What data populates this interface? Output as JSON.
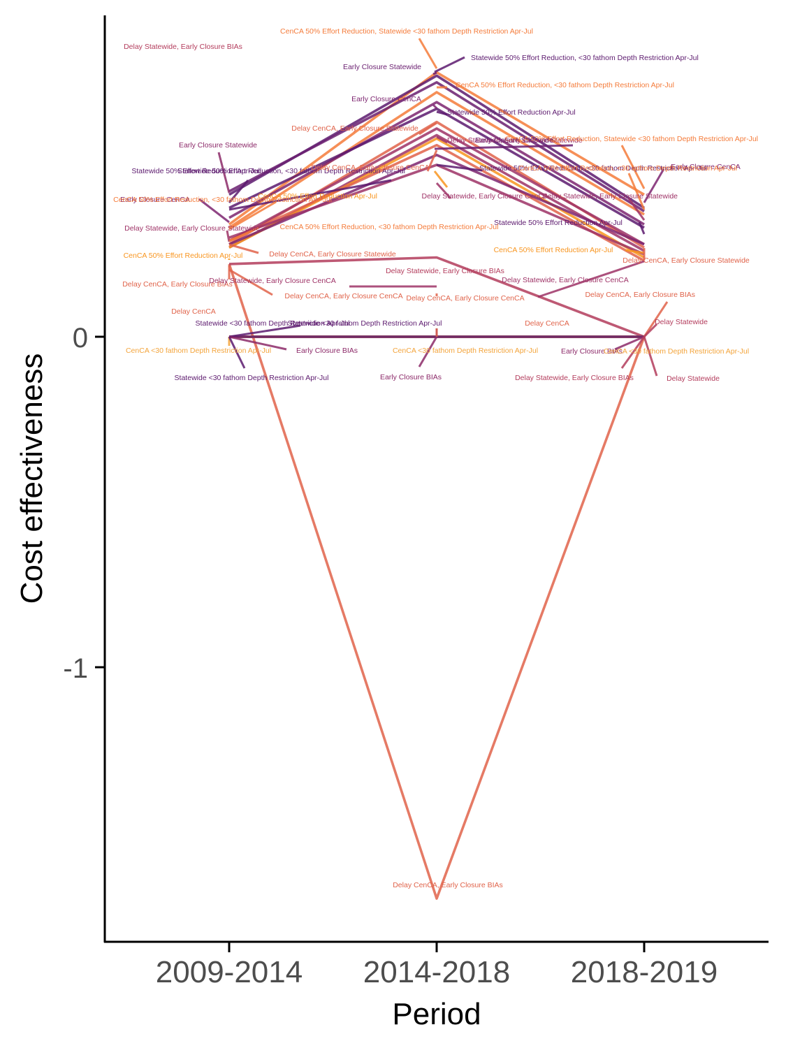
{
  "chart_data": {
    "type": "line",
    "xlabel": "Period",
    "ylabel": "Cost effectiveness",
    "categories": [
      "2009-2014",
      "2014-2018",
      "2018-2019"
    ],
    "yticks": [
      0,
      -1
    ],
    "ylim": [
      -1.83,
      0.97
    ],
    "grid": false,
    "legend": "none (direct labels)",
    "series": [
      {
        "name": "Delay CenCA, Early Closure BIAs",
        "color": "#e0634a",
        "values": [
          0.22,
          -1.7,
          0.0
        ]
      },
      {
        "name": "Delay Statewide, Early Closure BIAs",
        "color": "#b33c5c",
        "values": [
          0.22,
          0.24,
          0.0
        ]
      },
      {
        "name": "Delay Statewide",
        "color": "#b33c5c",
        "values": [
          0.0,
          0.0,
          0.0
        ]
      },
      {
        "name": "Delay CenCA",
        "color": "#e0634a",
        "values": [
          0.0,
          0.0,
          0.0
        ]
      },
      {
        "name": "Early Closure BIAs",
        "color": "#8c2a69",
        "values": [
          0.0,
          0.0,
          0.0
        ]
      },
      {
        "name": "CenCA <30 fathom Depth Restriction Apr-Jul",
        "color": "#f3a43b",
        "values": [
          0.0,
          0.0,
          0.0
        ]
      },
      {
        "name": "Statewide <30 fathom Depth Restriction Apr-Jul",
        "color": "#5c1a6e",
        "values": [
          0.0,
          0.0,
          0.0
        ]
      },
      {
        "name": "CenCA 50% Effort Reduction, Statewide <30 fathom Depth Restriction Apr-Jul",
        "color": "#f47b3a",
        "values": [
          0.34,
          0.8,
          0.43
        ]
      },
      {
        "name": "Statewide 50% Effort Reduction, <30 fathom Depth Restriction Apr-Jul",
        "color": "#5c1a6e",
        "values": [
          0.43,
          0.79,
          0.39
        ]
      },
      {
        "name": "Early Closure Statewide",
        "color": "#6a1f70",
        "values": [
          0.44,
          0.77,
          0.38
        ]
      },
      {
        "name": "CenCA 50% Effort Reduction, <30 fathom Depth Restriction Apr-Jul",
        "color": "#f47b3a",
        "values": [
          0.33,
          0.74,
          0.37
        ]
      },
      {
        "name": "Early Closure CenCA",
        "color": "#7d2570",
        "values": [
          0.36,
          0.71,
          0.34
        ]
      },
      {
        "name": "Statewide 50% Effort Reduction Apr-Jul",
        "color": "#5c1a6e",
        "values": [
          0.39,
          0.69,
          0.33
        ]
      },
      {
        "name": "Delay CenCA, Early Closure Statewide",
        "color": "#e0634a",
        "values": [
          0.28,
          0.65,
          0.27
        ]
      },
      {
        "name": "Delay Statewide, Early Closure Statewide",
        "color": "#9e3266",
        "values": [
          0.29,
          0.63,
          0.28
        ]
      },
      {
        "name": "Delay Statewide, Early Closure CenCA",
        "color": "#9e3266",
        "values": [
          0.27,
          0.61,
          0.26
        ]
      },
      {
        "name": "CenCA 50% Effort Reduction Apr-Jul",
        "color": "#f8951f",
        "values": [
          0.27,
          0.6,
          0.24
        ]
      },
      {
        "name": "Delay CenCA, Early Closure CenCA",
        "color": "#e0634a",
        "values": [
          0.29,
          0.58,
          0.23
        ]
      },
      {
        "name": "Statewide 50% Effort Reduction, <30 fathom Depth Restriction Apr-Jul",
        "color": "#7d2570",
        "values": [
          0.28,
          0.55,
          0.28
        ]
      },
      {
        "name": "Early Closure Statewide",
        "color": "#9e3266",
        "values": [
          0.3,
          0.52,
          0.25
        ]
      }
    ],
    "labels": [
      {
        "text": "CenCA 50% Effort Reduction, Statewide <30 fathom Depth Restriction Apr-Jul",
        "color": "#f47b3a"
      },
      {
        "text": "Delay Statewide, Early Closure BIAs",
        "color": "#b33c5c"
      },
      {
        "text": "Statewide 50% Effort Reduction, <30 fathom Depth Restriction Apr-Jul",
        "color": "#5c1a6e"
      },
      {
        "text": "Early Closure Statewide",
        "color": "#6a1f70"
      },
      {
        "text": "CenCA 50% Effort Reduction, <30 fathom Depth Restriction Apr-Jul",
        "color": "#f47b3a"
      },
      {
        "text": "Early Closure CenCA",
        "color": "#7d2570"
      },
      {
        "text": "Statewide 50% Effort Reduction Apr-Jul",
        "color": "#5c1a6e"
      },
      {
        "text": "Delay CenCA, Early Closure Statewide",
        "color": "#e0634a"
      },
      {
        "text": "Delay Statewide, Early Closure Statewide",
        "color": "#9e3266"
      },
      {
        "text": "Early Closure Statewide",
        "color": "#8c2a69"
      },
      {
        "text": "Statewide 50% Effort Reduction Apr-Jul",
        "color": "#5c1a6e"
      },
      {
        "text": "Statewide 50% Effort Reduction, <30 fathom Depth Restriction Apr-Jul",
        "color": "#5c1a6e"
      },
      {
        "text": "Delay CenCA, Early Closure CenCA",
        "color": "#e0634a"
      },
      {
        "text": "CenCA 50% Effort Reduction, Statewide <30 fathom Depth Restriction Apr-Jul",
        "color": "#f47b3a"
      },
      {
        "text": "Early Closure Statewide",
        "color": "#6a1f70"
      },
      {
        "text": "Statewide 50% Effort Reduction, <30 fathom Depth Restriction Apr-Jul",
        "color": "#5c1a6e"
      },
      {
        "text": "Early Closure CenCA",
        "color": "#7d2570"
      },
      {
        "text": "CenCA 50% Effort Reduction, <30 fathom Depth Restriction Apr-Jul",
        "color": "#f47b3a"
      },
      {
        "text": "Delay Statewide, Early Closure CenCA",
        "color": "#9e3266"
      },
      {
        "text": "CenCA 50% Effort Reduction Apr-Jul",
        "color": "#f8951f"
      },
      {
        "text": "Early Closure CenCA",
        "color": "#7d2570"
      },
      {
        "text": "CenCA 50% Effort Reduction, <30 fathom Depth Restriction Apr-Jul",
        "color": "#f47b3a"
      },
      {
        "text": "Delay Statewide, Early Closure Statewide",
        "color": "#9e3266"
      },
      {
        "text": "Delay Statewide, Early Closure Statewide",
        "color": "#9e3266"
      },
      {
        "text": "Statewide 50% Effort Reduction Apr-Jul",
        "color": "#5c1a6e"
      },
      {
        "text": "CenCA 50% Effort Reduction, <30 fathom Depth Restriction Apr-Jul",
        "color": "#f47b3a"
      },
      {
        "text": "Delay CenCA, Early Closure Statewide",
        "color": "#e0634a"
      },
      {
        "text": "CenCA 50% Effort Reduction Apr-Jul",
        "color": "#f8951f"
      },
      {
        "text": "CenCA 50% Effort Reduction Apr-Jul",
        "color": "#f8951f"
      },
      {
        "text": "Delay CenCA, Early Closure Statewide",
        "color": "#e0634a"
      },
      {
        "text": "Delay Statewide, Early Closure BIAs",
        "color": "#b33c5c"
      },
      {
        "text": "Delay CenCA, Early Closure BIAs",
        "color": "#e0634a"
      },
      {
        "text": "Delay Statewide, Early Closure CenCA",
        "color": "#9e3266"
      },
      {
        "text": "Delay Statewide, Early Closure CenCA",
        "color": "#9e3266"
      },
      {
        "text": "Delay CenCA, Early Closure CenCA",
        "color": "#e0634a"
      },
      {
        "text": "Delay CenCA, Early Closure CenCA",
        "color": "#e0634a"
      },
      {
        "text": "Delay CenCA, Early Closure BIAs",
        "color": "#e0634a"
      },
      {
        "text": "Delay CenCA",
        "color": "#e0634a"
      },
      {
        "text": "Delay Statewide",
        "color": "#b33c5c"
      },
      {
        "text": "Statewide <30 fathom Depth Restriction Apr-Jul",
        "color": "#5c1a6e"
      },
      {
        "text": "Statewide <30 fathom Depth Restriction Apr-Jul",
        "color": "#5c1a6e"
      },
      {
        "text": "Delay CenCA",
        "color": "#e0634a"
      },
      {
        "text": "CenCA <30 fathom Depth Restriction Apr-Jul",
        "color": "#f3a43b"
      },
      {
        "text": "Early Closure BIAs",
        "color": "#8c2a69"
      },
      {
        "text": "CenCA <30 fathom Depth Restriction Apr-Jul",
        "color": "#f3a43b"
      },
      {
        "text": "Early Closure BIAs",
        "color": "#8c2a69"
      },
      {
        "text": "CenCA <30 fathom Depth Restriction Apr-Jul",
        "color": "#f3a43b"
      },
      {
        "text": "Statewide <30 fathom Depth Restriction Apr-Jul",
        "color": "#5c1a6e"
      },
      {
        "text": "Early Closure BIAs",
        "color": "#8c2a69"
      },
      {
        "text": "Delay Statewide, Early Closure BIAs",
        "color": "#b33c5c"
      },
      {
        "text": "Delay Statewide",
        "color": "#b33c5c"
      },
      {
        "text": "Delay CenCA, Early Closure BIAs",
        "color": "#e0634a"
      }
    ]
  }
}
